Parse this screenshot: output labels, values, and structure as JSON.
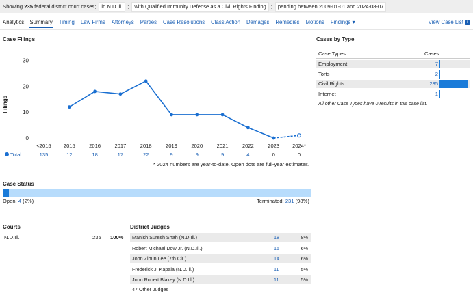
{
  "filters": {
    "showing_prefix": "Showing",
    "count": "235",
    "showing_suffix": "federal district court cases;",
    "chip_court": "in N.D.Ill.",
    "chip_finding": "with Qualified Immunity Defense as a Civil Rights Finding",
    "chip_pending": "pending between 2009-01-01 and 2024-08-07",
    "sep": ";",
    "end": "."
  },
  "nav": {
    "label": "Analytics:",
    "tabs": [
      "Summary",
      "Timing",
      "Law Firms",
      "Attorneys",
      "Parties",
      "Case Resolutions",
      "Class Action",
      "Damages",
      "Remedies",
      "Motions",
      "Findings ▾"
    ],
    "active": "Summary",
    "view_list": "View Case List",
    "view_list_icon": "i"
  },
  "case_filings": {
    "title": "Case Filings",
    "ylabel": "Filings",
    "total_label": "Total",
    "footnote": "* 2024 numbers are year-to-date. Open dots are full-year estimates."
  },
  "chart_data": {
    "type": "line",
    "title": "Case Filings",
    "ylabel": "Filings",
    "xlabel": "",
    "categories": [
      "<2015",
      "2015",
      "2016",
      "2017",
      "2018",
      "2019",
      "2020",
      "2021",
      "2022",
      "2023",
      "2024*"
    ],
    "totals": [
      "135",
      "12",
      "18",
      "17",
      "22",
      "9",
      "9",
      "9",
      "4",
      "0",
      "0"
    ],
    "series": [
      {
        "values": [
          null,
          12,
          18,
          17,
          22,
          9,
          9,
          9,
          4,
          0,
          null
        ]
      }
    ],
    "estimate": {
      "x": "2024*",
      "value": 1
    },
    "yticks": [
      "0",
      "10",
      "20",
      "30"
    ],
    "ylim": [
      0,
      32
    ],
    "grid": false,
    "line_color": "#1a6fd1"
  },
  "cases_by_type": {
    "title": "Cases by Type",
    "col_type": "Case Types",
    "col_cases": "Cases",
    "rows": [
      {
        "name": "Employment",
        "count": "7",
        "value": 7
      },
      {
        "name": "Torts",
        "count": "2",
        "value": 2
      },
      {
        "name": "Civil Rights",
        "count": "235",
        "value": 235
      },
      {
        "name": "Internet",
        "count": "1",
        "value": 1
      }
    ],
    "note": "All other Case Types have 0 results in this case list."
  },
  "case_status": {
    "title": "Case Status",
    "open_label": "Open:",
    "open_count": "4",
    "open_pct": "(2%)",
    "open_fraction": 0.02,
    "terminated_label": "Terminated:",
    "terminated_count": "231",
    "terminated_pct": "(98%)"
  },
  "courts": {
    "title": "Courts",
    "rows": [
      {
        "name": "N.D.Ill.",
        "count": "235",
        "pct": "100%"
      }
    ]
  },
  "judges": {
    "title": "District Judges",
    "rows": [
      {
        "name": "Manish Suresh Shah (N.D.Ill.)",
        "count": "18",
        "pct": "8%"
      },
      {
        "name": "Robert Michael Dow Jr. (N.D.Ill.)",
        "count": "15",
        "pct": "6%"
      },
      {
        "name": "John Zihun Lee (7th Cir.)",
        "count": "14",
        "pct": "6%"
      },
      {
        "name": "Frederick J. Kapala (N.D.Ill.)",
        "count": "11",
        "pct": "5%"
      },
      {
        "name": "John Robert Blakey (N.D.Ill.)",
        "count": "11",
        "pct": "5%"
      }
    ],
    "other": "47 Other Judges"
  }
}
